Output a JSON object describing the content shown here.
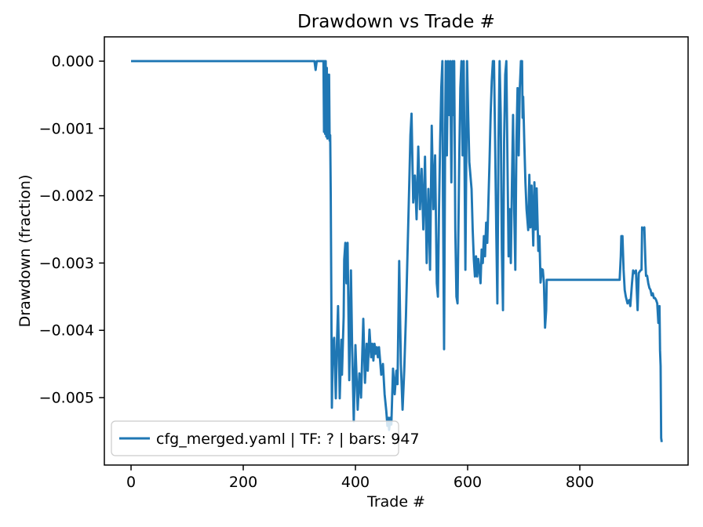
{
  "chart_data": {
    "type": "line",
    "title": "Drawdown vs Trade #",
    "xlabel": "Trade #",
    "ylabel": "Drawdown (fraction)",
    "legend": [
      "cfg_merged.yaml | TF: ? | bars: 947"
    ],
    "legend_location": "lower left",
    "grid": false,
    "line_color": "#1f77b4",
    "xlim": [
      -47.6,
      993.0
    ],
    "ylim": [
      -0.006002,
      0.000361
    ],
    "xticks": {
      "values": [
        0,
        200,
        400,
        600,
        800
      ],
      "labels": [
        "0",
        "200",
        "400",
        "600",
        "800"
      ]
    },
    "yticks": {
      "values": [
        0,
        -0.001,
        -0.002,
        -0.003,
        -0.004,
        -0.005
      ],
      "labels": [
        "0.000",
        "−0.001",
        "−0.002",
        "−0.003",
        "−0.004",
        "−0.005"
      ]
    },
    "series": [
      {
        "name": "cfg_merged.yaml | TF: ? | bars: 947",
        "points": [
          [
            0,
            0
          ],
          [
            327,
            0
          ],
          [
            329,
            -0.00013
          ],
          [
            331,
            0
          ],
          [
            343,
            0
          ],
          [
            344,
            -0.00105
          ],
          [
            345,
            0
          ],
          [
            346,
            -0.00108
          ],
          [
            347,
            0
          ],
          [
            348,
            -0.00112
          ],
          [
            349,
            -0.0001
          ],
          [
            350,
            -0.00115
          ],
          [
            351,
            -0.0002
          ],
          [
            352,
            -0.0008
          ],
          [
            353,
            -0.0002
          ],
          [
            354,
            -0.00118
          ],
          [
            355,
            -0.0011
          ],
          [
            356,
            -0.002
          ],
          [
            357,
            -0.0035
          ],
          [
            358,
            -0.00515
          ],
          [
            359,
            -0.0046
          ],
          [
            360,
            -0.00422
          ],
          [
            362,
            -0.00411
          ],
          [
            365,
            -0.00501
          ],
          [
            367,
            -0.0042
          ],
          [
            369,
            -0.00364
          ],
          [
            372,
            -0.00501
          ],
          [
            375,
            -0.00414
          ],
          [
            376,
            -0.00466
          ],
          [
            379,
            -0.0038
          ],
          [
            380,
            -0.00295
          ],
          [
            382,
            -0.0027
          ],
          [
            384,
            -0.0033
          ],
          [
            386,
            -0.0027
          ],
          [
            389,
            -0.00474
          ],
          [
            392,
            -0.00311
          ],
          [
            394,
            -0.0042
          ],
          [
            397,
            -0.00535
          ],
          [
            400,
            -0.00422
          ],
          [
            404,
            -0.00518
          ],
          [
            407,
            -0.00464
          ],
          [
            410,
            -0.005
          ],
          [
            414,
            -0.00383
          ],
          [
            417,
            -0.00478
          ],
          [
            420,
            -0.0042
          ],
          [
            422,
            -0.0046
          ],
          [
            425,
            -0.00399
          ],
          [
            428,
            -0.0044
          ],
          [
            430,
            -0.0042
          ],
          [
            432,
            -0.00445
          ],
          [
            434,
            -0.0042
          ],
          [
            436,
            -0.00435
          ],
          [
            438,
            -0.00425
          ],
          [
            440,
            -0.0044
          ],
          [
            442,
            -0.00425
          ],
          [
            444,
            -0.00445
          ],
          [
            446,
            -0.00466
          ],
          [
            449,
            -0.0045
          ],
          [
            452,
            -0.00495
          ],
          [
            455,
            -0.0052
          ],
          [
            457,
            -0.00542
          ],
          [
            459,
            -0.0053
          ],
          [
            460,
            -0.00548
          ],
          [
            462,
            -0.0053
          ],
          [
            464,
            -0.0054
          ],
          [
            467,
            -0.00457
          ],
          [
            470,
            -0.00495
          ],
          [
            473,
            -0.0046
          ],
          [
            475,
            -0.0048
          ],
          [
            478,
            -0.00297
          ],
          [
            481,
            -0.0045
          ],
          [
            484,
            -0.00518
          ],
          [
            487,
            -0.0046
          ],
          [
            490,
            -0.0038
          ],
          [
            493,
            -0.0028
          ],
          [
            496,
            -0.0018
          ],
          [
            498,
            -0.0011
          ],
          [
            500,
            -0.00078
          ],
          [
            503,
            -0.0021
          ],
          [
            506,
            -0.0017
          ],
          [
            509,
            -0.00235
          ],
          [
            512,
            -0.00127
          ],
          [
            515,
            -0.0022
          ],
          [
            518,
            -0.0016
          ],
          [
            521,
            -0.0025
          ],
          [
            524,
            -0.00142
          ],
          [
            527,
            -0.003
          ],
          [
            530,
            -0.0019
          ],
          [
            533,
            -0.0031
          ],
          [
            536,
            -0.00096
          ],
          [
            539,
            -0.0022
          ],
          [
            542,
            -0.0014
          ],
          [
            545,
            -0.0033
          ],
          [
            547,
            -0.0035
          ],
          [
            549,
            -0.0022
          ],
          [
            551,
            -0.0012
          ],
          [
            553,
            -0.0004
          ],
          [
            555,
            0
          ],
          [
            556,
            -0.002
          ],
          [
            558,
            -0.00428
          ],
          [
            560,
            -0.001
          ],
          [
            561,
            0
          ],
          [
            563,
            -0.0014
          ],
          [
            565,
            0
          ],
          [
            567,
            -0.0008
          ],
          [
            569,
            0
          ],
          [
            571,
            -0.0018
          ],
          [
            573,
            0
          ],
          [
            575,
            -0.0008
          ],
          [
            576,
            0
          ],
          [
            578,
            -0.0025
          ],
          [
            580,
            -0.0035
          ],
          [
            582,
            -0.0036
          ],
          [
            583,
            -0.0029
          ],
          [
            585,
            -0.0015
          ],
          [
            587,
            -0.0004
          ],
          [
            589,
            0
          ],
          [
            591,
            -0.0014
          ],
          [
            593,
            0
          ],
          [
            596,
            -0.0031
          ],
          [
            599,
            0
          ],
          [
            601,
            -0.0008
          ],
          [
            603,
            -0.0015
          ],
          [
            605,
            -0.0017
          ],
          [
            607,
            -0.0019
          ],
          [
            609,
            -0.0025
          ],
          [
            611,
            -0.00294
          ],
          [
            613,
            -0.0032
          ],
          [
            615,
            -0.0029
          ],
          [
            617,
            -0.0032
          ],
          [
            619,
            -0.00294
          ],
          [
            621,
            -0.0031
          ],
          [
            623,
            -0.0033
          ],
          [
            625,
            -0.0028
          ],
          [
            627,
            -0.003
          ],
          [
            629,
            -0.0026
          ],
          [
            631,
            -0.0029
          ],
          [
            633,
            -0.0024
          ],
          [
            635,
            -0.0027
          ],
          [
            637,
            -0.0021
          ],
          [
            639,
            -0.0015
          ],
          [
            641,
            -0.0008
          ],
          [
            643,
            -0.0003
          ],
          [
            645,
            0
          ],
          [
            647,
            0
          ],
          [
            649,
            -0.0012
          ],
          [
            651,
            -0.0025
          ],
          [
            653,
            -0.0036
          ],
          [
            655,
            -0.0012
          ],
          [
            657,
            0
          ],
          [
            659,
            -0.0008
          ],
          [
            661,
            -0.0028
          ],
          [
            663,
            -0.0037
          ],
          [
            665,
            -0.0012
          ],
          [
            667,
            -0.0002
          ],
          [
            669,
            0
          ],
          [
            671,
            -0.0015
          ],
          [
            673,
            -0.0029
          ],
          [
            675,
            -0.0022
          ],
          [
            677,
            -0.003
          ],
          [
            679,
            -0.0018
          ],
          [
            681,
            -0.0008
          ],
          [
            683,
            -0.0022
          ],
          [
            685,
            -0.0031
          ],
          [
            687,
            -0.0012
          ],
          [
            689,
            -0.0004
          ],
          [
            691,
            -0.0014
          ],
          [
            693,
            -0.0004
          ],
          [
            695,
            0
          ],
          [
            697,
            0
          ],
          [
            698,
            -0.00084
          ],
          [
            699,
            -0.00053
          ],
          [
            701,
            -0.0012
          ],
          [
            703,
            -0.0018
          ],
          [
            705,
            -0.0022
          ],
          [
            708,
            -0.00251
          ],
          [
            710,
            -0.00169
          ],
          [
            712,
            -0.00247
          ],
          [
            714,
            -0.00185
          ],
          [
            717,
            -0.00274
          ],
          [
            719,
            -0.0018
          ],
          [
            721,
            -0.0025
          ],
          [
            723,
            -0.00189
          ],
          [
            726,
            -0.00282
          ],
          [
            728,
            -0.0026
          ],
          [
            730,
            -0.00329
          ],
          [
            732,
            -0.00309
          ],
          [
            734,
            -0.0031
          ],
          [
            736,
            -0.0033
          ],
          [
            738,
            -0.00396
          ],
          [
            740,
            -0.0037
          ],
          [
            741,
            -0.00325
          ],
          [
            871,
            -0.00325
          ],
          [
            873,
            -0.0029
          ],
          [
            874,
            -0.0026
          ],
          [
            876,
            -0.0026
          ],
          [
            878,
            -0.0031
          ],
          [
            880,
            -0.0034
          ],
          [
            882,
            -0.0035
          ],
          [
            885,
            -0.0036
          ],
          [
            888,
            -0.00355
          ],
          [
            890,
            -0.00364
          ],
          [
            893,
            -0.0033
          ],
          [
            895,
            -0.00311
          ],
          [
            897,
            -0.00315
          ],
          [
            900,
            -0.00311
          ],
          [
            903,
            -0.0037
          ],
          [
            905,
            -0.00315
          ],
          [
            908,
            -0.00311
          ],
          [
            910,
            -0.0031
          ],
          [
            911,
            -0.00247
          ],
          [
            913,
            -0.0025
          ],
          [
            915,
            -0.00247
          ],
          [
            917,
            -0.003
          ],
          [
            918,
            -0.00319
          ],
          [
            920,
            -0.00319
          ],
          [
            922,
            -0.0033
          ],
          [
            924,
            -0.00337
          ],
          [
            926,
            -0.0034
          ],
          [
            928,
            -0.00348
          ],
          [
            930,
            -0.00345
          ],
          [
            932,
            -0.00352
          ],
          [
            934,
            -0.00352
          ],
          [
            936,
            -0.00355
          ],
          [
            938,
            -0.0036
          ],
          [
            940,
            -0.00389
          ],
          [
            942,
            -0.00364
          ],
          [
            943,
            -0.0043
          ],
          [
            944,
            -0.00453
          ],
          [
            945,
            -0.0056
          ],
          [
            946,
            -0.00566
          ]
        ]
      }
    ]
  }
}
